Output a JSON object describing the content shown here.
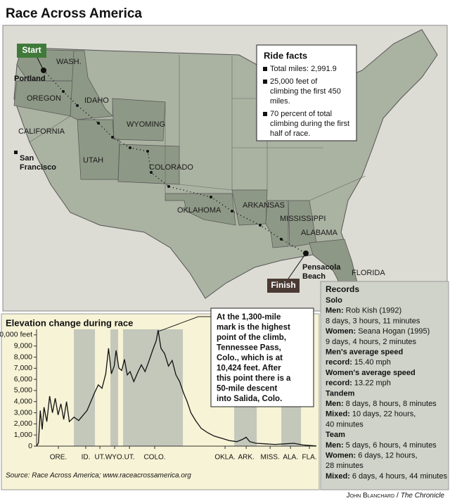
{
  "title": "Race Across America",
  "map": {
    "start": "Start",
    "finish": "Finish",
    "states": [
      "WASH.",
      "OREGON",
      "IDAHO",
      "WYOMING",
      "CALIFORNIA",
      "UTAH",
      "COLORADO",
      "OKLAHOMA",
      "ARKANSAS",
      "MISSISSIPPI",
      "ALABAMA",
      "FLORIDA"
    ],
    "cities": [
      [
        "Portland"
      ],
      [
        "San",
        "Francisco"
      ],
      [
        "Pensacola",
        "Beach"
      ]
    ]
  },
  "ride_facts": {
    "title": "Ride facts",
    "items": [
      [
        "Total miles: 2,991.9"
      ],
      [
        "25,000 feet of",
        "climbing the first 450",
        "miles."
      ],
      [
        "70 percent of total",
        "climbing during the first",
        "half of race."
      ]
    ]
  },
  "records": {
    "title": "Records",
    "rows": [
      {
        "bold": "Solo"
      },
      {
        "bold": "Men:",
        "text": "Rob Kish (1992)"
      },
      {
        "text": "8 days, 3 hours, 11 minutes"
      },
      {
        "bold": "Women:",
        "text": "Seana Hogan (1995)"
      },
      {
        "text": "9 days, 4 hours, 2 minutes"
      },
      {
        "bold": "Men's average speed"
      },
      {
        "bold": "record:",
        "text": "15.40 mph"
      },
      {
        "bold": "Women's average speed"
      },
      {
        "bold": "record:",
        "text": "13.22 mph"
      },
      {
        "bold": "Tandem"
      },
      {
        "bold": "Men:",
        "text": "8 days, 8 hours, 8 minutes"
      },
      {
        "bold": "Mixed:",
        "text": "10 days, 22 hours,"
      },
      {
        "text": "40 minutes"
      },
      {
        "bold": "Team"
      },
      {
        "bold": "Men:",
        "text": "5 days, 6 hours, 4 minutes"
      },
      {
        "bold": "Women:",
        "text": "6 days, 12 hours,"
      },
      {
        "text": "28 minutes"
      },
      {
        "bold": "Mixed:",
        "text": "6 days, 4 hours, 44 minutes"
      }
    ]
  },
  "chart_data": {
    "type": "line",
    "title": "Elevation change during race",
    "annotation": [
      "At the 1,300-mile",
      "mark is the highest",
      "point of the climb,",
      "Tennessee Pass,",
      "Colo., which is at",
      "10,424 feet. After",
      "this point there is a",
      "50-mile descent",
      "into Salida, Colo."
    ],
    "x": [
      0,
      20,
      40,
      60,
      80,
      110,
      140,
      170,
      200,
      230,
      260,
      290,
      320,
      350,
      400,
      450,
      500,
      540,
      580,
      620,
      660,
      700,
      740,
      770,
      800,
      830,
      850,
      880,
      910,
      940,
      970,
      1000,
      1040,
      1080,
      1120,
      1160,
      1200,
      1240,
      1280,
      1300,
      1330,
      1370,
      1410,
      1450,
      1490,
      1530,
      1570,
      1610,
      1650,
      1700,
      1760,
      1830,
      1900,
      1980,
      2060,
      2140,
      2200,
      2240,
      2280,
      2350,
      2450,
      2550,
      2650,
      2750,
      2850,
      2991.9
    ],
    "values": [
      0,
      300,
      3200,
      1500,
      3500,
      2200,
      4500,
      3000,
      4300,
      2800,
      3800,
      2400,
      4000,
      2200,
      2600,
      2300,
      2800,
      3200,
      4000,
      4800,
      5500,
      5200,
      6500,
      8800,
      6500,
      7200,
      8600,
      7000,
      6800,
      7800,
      6400,
      6700,
      5800,
      6600,
      7300,
      6700,
      7600,
      8600,
      9500,
      10424,
      8800,
      8300,
      7200,
      7700,
      6400,
      5800,
      4800,
      4000,
      3000,
      2300,
      1600,
      1200,
      900,
      700,
      500,
      400,
      600,
      800,
      400,
      250,
      200,
      150,
      200,
      250,
      100,
      10
    ],
    "color": "#111111",
    "xlim": [
      0,
      2991.9
    ],
    "ylim": [
      0,
      10500
    ],
    "yticks": [
      0,
      {
        "value": 1000,
        "label": "1,000"
      },
      {
        "value": 2000,
        "label": "2,000"
      },
      {
        "value": 3000,
        "label": "3,000"
      },
      {
        "value": 4000,
        "label": "4,000"
      },
      {
        "value": 5000,
        "label": "5,000"
      },
      {
        "value": 6000,
        "label": "6,000"
      },
      {
        "value": 7000,
        "label": "7,000"
      },
      {
        "value": 8000,
        "label": "8,000"
      },
      {
        "value": 9000,
        "label": "9,000"
      },
      {
        "value": 10000,
        "label": "10,000 feet"
      }
    ],
    "xticks": [
      {
        "value": 233,
        "label": "ORE."
      },
      {
        "value": 526,
        "label": "ID."
      },
      {
        "value": 677,
        "label": "UT."
      },
      {
        "value": 835,
        "label": "WYO."
      },
      {
        "value": 993,
        "label": "UT."
      },
      {
        "value": 1263,
        "label": "COLO."
      },
      {
        "value": 2015,
        "label": "OKLA."
      },
      {
        "value": 2241,
        "label": "ARK."
      },
      {
        "value": 2497,
        "label": "MISS."
      },
      {
        "value": 2715,
        "label": "ALA."
      },
      {
        "value": 2917,
        "label": "FLA."
      }
    ],
    "bands": [
      [
        399,
        624
      ],
      [
        790,
        872
      ],
      [
        925,
        1564
      ],
      [
        2113,
        2354
      ],
      [
        2617,
        2827
      ]
    ],
    "band_color": "#c3c8bb"
  },
  "source": "Source: Race Across America; www.raceacrossamerica.org",
  "credit": {
    "author": "John Blanchard /",
    "outlet": "The Chronicle"
  }
}
